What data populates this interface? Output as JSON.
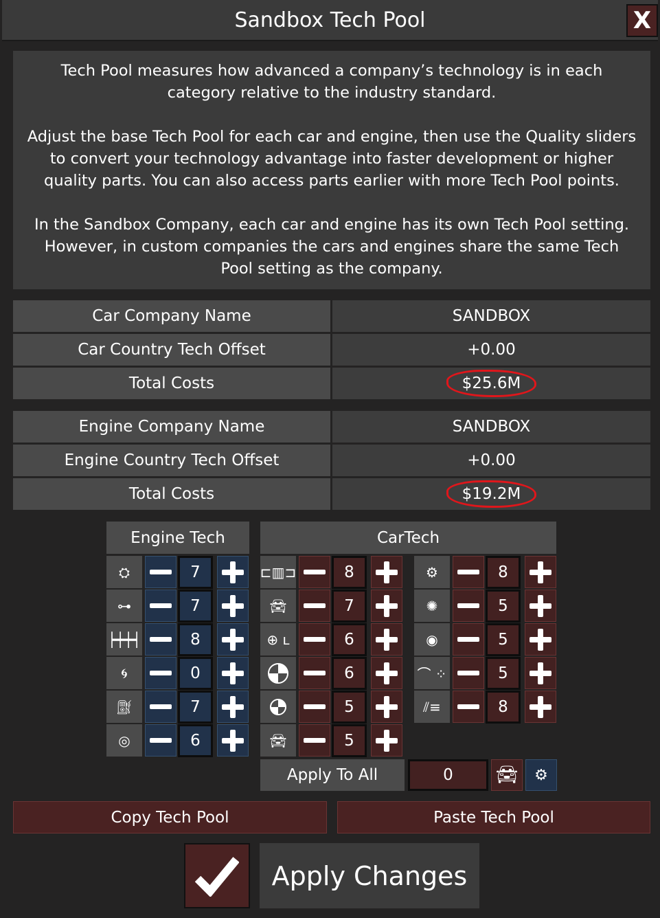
{
  "window": {
    "title": "Sandbox Tech Pool",
    "close_label": "X"
  },
  "info": {
    "paragraphs": [
      "Tech Pool measures how advanced a company’s technology is in each category relative to the industry standard.",
      "Adjust the base Tech Pool for each car and engine, then use the Quality sliders to convert your technology advantage into faster development or higher quality parts. You can also access parts earlier with more Tech Pool points.",
      "In the Sandbox Company, each car and engine has its own Tech Pool setting. However, in custom companies the cars and engines share the same Tech Pool setting as the company."
    ]
  },
  "car_company": [
    {
      "label": "Car Company Name",
      "value": "SANDBOX"
    },
    {
      "label": "Car Country Tech Offset",
      "value": "+0.00"
    },
    {
      "label": "Total Costs",
      "value": "$25.6M"
    }
  ],
  "engine_company": [
    {
      "label": "Engine Company Name",
      "value": "SANDBOX"
    },
    {
      "label": "Engine Country Tech Offset",
      "value": "+0.00"
    },
    {
      "label": "Total Costs",
      "value": "$19.2M"
    }
  ],
  "annotation_color": "#e0161b",
  "engine_tech": {
    "header": "Engine Tech",
    "rows": [
      {
        "icon": "engine-block-icon",
        "value": "7"
      },
      {
        "icon": "piston-rod-icon",
        "value": "7"
      },
      {
        "icon": "crankshaft-icon",
        "value": "8"
      },
      {
        "icon": "turbo-icon",
        "value": "0"
      },
      {
        "icon": "fuel-pump-icon",
        "value": "7"
      },
      {
        "icon": "exhaust-icon",
        "value": "6"
      }
    ]
  },
  "car_tech": {
    "header": "CarTech",
    "col1": [
      {
        "icon": "chassis-icon",
        "value": "8"
      },
      {
        "icon": "car-body-icon",
        "value": "7"
      },
      {
        "icon": "interior-icon",
        "value": "6"
      },
      {
        "icon": "safety-large-icon",
        "value": "6"
      },
      {
        "icon": "safety-small-icon",
        "value": "5"
      },
      {
        "icon": "car-front-icon",
        "value": "5"
      }
    ],
    "col2": [
      {
        "icon": "gearbox-icon",
        "value": "8"
      },
      {
        "icon": "wheel-icon",
        "value": "5"
      },
      {
        "icon": "brake-icon",
        "value": "5"
      },
      {
        "icon": "aero-icon",
        "value": "5"
      },
      {
        "icon": "suspension-icon",
        "value": "8"
      }
    ]
  },
  "apply_all": {
    "label": "Apply To All",
    "value": "0"
  },
  "buttons": {
    "copy": "Copy Tech Pool",
    "paste": "Paste Tech Pool",
    "apply": "Apply Changes"
  },
  "colors": {
    "blue": "#21324a",
    "red": "#432121"
  }
}
